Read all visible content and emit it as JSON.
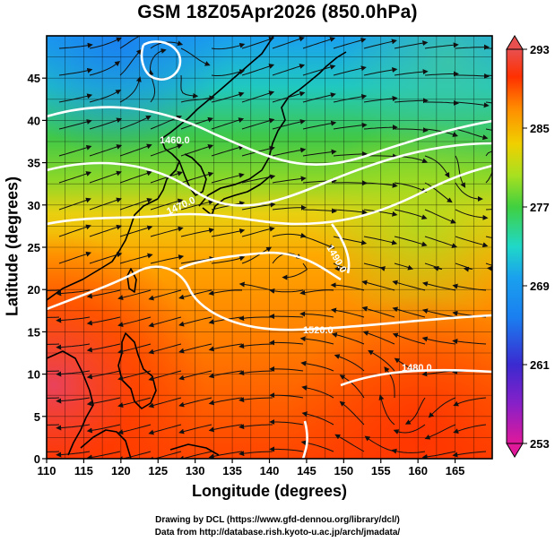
{
  "title": "GSM 18Z05Apr2026 (850.0hPa)",
  "xaxis": {
    "label": "Longitude (degrees)",
    "range": [
      110,
      170
    ],
    "ticks": [
      "110",
      "115",
      "120",
      "125",
      "130",
      "135",
      "140",
      "145",
      "150",
      "155",
      "160",
      "165"
    ]
  },
  "yaxis": {
    "label": "Latitude  (degrees)",
    "range": [
      0,
      50
    ],
    "ticks": [
      "0",
      "5",
      "10",
      "15",
      "20",
      "25",
      "30",
      "35",
      "40",
      "45"
    ]
  },
  "colorbar": {
    "labels": [
      "293",
      "285",
      "277",
      "269",
      "261",
      "253"
    ],
    "range": [
      253,
      293
    ],
    "colors": [
      "#e0189a",
      "#3a2ad0",
      "#1aa0ee",
      "#20d8c8",
      "#40d040",
      "#a8e020",
      "#f0d000",
      "#ff8c00",
      "#ff3000",
      "#e85050"
    ]
  },
  "contours": [
    {
      "label": "1460.0"
    },
    {
      "label": "1470.0"
    },
    {
      "label": "1490.0"
    },
    {
      "label": "1520.0"
    },
    {
      "label": "1480.0"
    }
  ],
  "credits": {
    "line1": "Drawing by DCL (https://www.gfd-dennou.org/library/dcl/)",
    "line2": "Data from http://database.rish.kyoto-u.ac.jp/arch/jmadata/"
  }
}
